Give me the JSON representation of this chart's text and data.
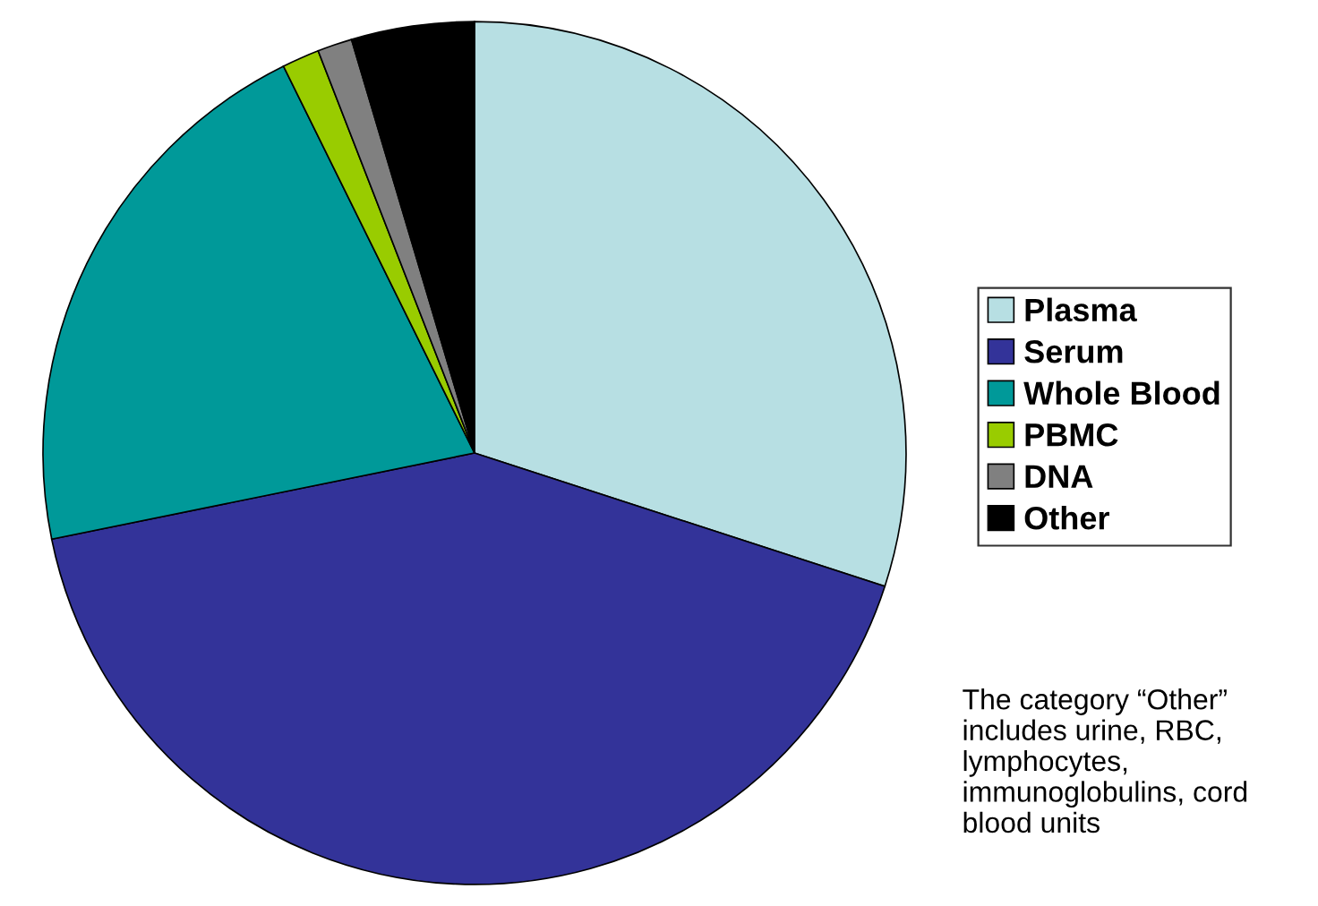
{
  "chart_data": {
    "type": "pie",
    "categories": [
      "Plasma",
      "Serum",
      "Whole Blood",
      "PBMC",
      "DNA",
      "Other"
    ],
    "values": [
      30,
      41.8,
      20.9,
      1.4,
      1.3,
      4.6
    ],
    "colors": [
      "#b7dfe3",
      "#333399",
      "#009999",
      "#99cc00",
      "#808080",
      "#000000"
    ],
    "legend": "right",
    "annotations": [
      "The category “Other” includes urine, RBC, lymphocytes, immunoglobulins, cord blood units"
    ]
  }
}
